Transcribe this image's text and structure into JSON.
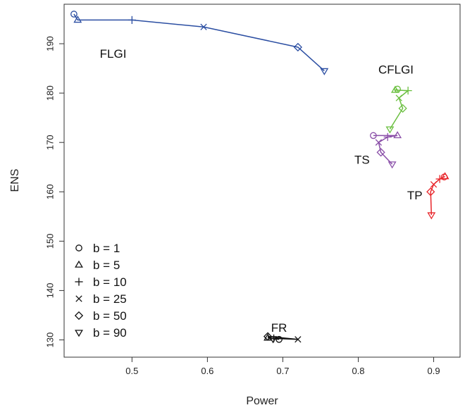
{
  "chart_data": {
    "type": "line",
    "xlabel": "Power",
    "ylabel": "ENS",
    "xlim": [
      0.41,
      0.935
    ],
    "ylim": [
      126.5,
      198
    ],
    "xticks": [
      0.5,
      0.6,
      0.7,
      0.8,
      0.9
    ],
    "xtick_labels": [
      "0.5",
      "0.6",
      "0.7",
      "0.8",
      "0.9"
    ],
    "yticks": [
      130,
      140,
      150,
      160,
      170,
      180,
      190
    ],
    "ytick_labels": [
      "130",
      "140",
      "150",
      "160",
      "170",
      "180",
      "190"
    ],
    "grid": false,
    "legend_position": "bottom-left",
    "legend": [
      {
        "marker": "circle",
        "label": "b = 1"
      },
      {
        "marker": "triangle-up",
        "label": "b = 5"
      },
      {
        "marker": "plus",
        "label": "b = 10"
      },
      {
        "marker": "cross",
        "label": "b = 25"
      },
      {
        "marker": "diamond",
        "label": "b = 50"
      },
      {
        "marker": "triangle-down",
        "label": "b = 90"
      }
    ],
    "markers_by_b": [
      "circle",
      "triangle-up",
      "plus",
      "cross",
      "diamond",
      "triangle-down"
    ],
    "series": [
      {
        "name": "FLGI",
        "color": "#2b4ea2",
        "label_anchor": [
          0.475,
          188.0
        ],
        "points": [
          {
            "b": 1,
            "x": 0.423,
            "y": 196.0
          },
          {
            "b": 5,
            "x": 0.428,
            "y": 194.8
          },
          {
            "b": 10,
            "x": 0.5,
            "y": 194.8
          },
          {
            "b": 25,
            "x": 0.595,
            "y": 193.4
          },
          {
            "b": 50,
            "x": 0.72,
            "y": 189.3
          },
          {
            "b": 90,
            "x": 0.755,
            "y": 184.5
          }
        ]
      },
      {
        "name": "CFLGI",
        "color": "#6abf3f",
        "label_anchor": [
          0.85,
          184.8
        ],
        "points": [
          {
            "b": 1,
            "x": 0.852,
            "y": 180.8
          },
          {
            "b": 5,
            "x": 0.849,
            "y": 180.6
          },
          {
            "b": 10,
            "x": 0.866,
            "y": 180.5
          },
          {
            "b": 25,
            "x": 0.854,
            "y": 179.0
          },
          {
            "b": 50,
            "x": 0.859,
            "y": 176.9
          },
          {
            "b": 90,
            "x": 0.842,
            "y": 172.7
          }
        ]
      },
      {
        "name": "TS",
        "color": "#8a4fa8",
        "label_anchor": [
          0.805,
          166.5
        ],
        "points": [
          {
            "b": 1,
            "x": 0.82,
            "y": 171.4
          },
          {
            "b": 5,
            "x": 0.852,
            "y": 171.4
          },
          {
            "b": 10,
            "x": 0.839,
            "y": 171.1
          },
          {
            "b": 25,
            "x": 0.827,
            "y": 170.0
          },
          {
            "b": 50,
            "x": 0.83,
            "y": 168.0
          },
          {
            "b": 90,
            "x": 0.845,
            "y": 165.6
          }
        ]
      },
      {
        "name": "TP",
        "color": "#e8262b",
        "label_anchor": [
          0.875,
          159.3
        ],
        "points": [
          {
            "b": 1,
            "x": 0.914,
            "y": 163.0
          },
          {
            "b": 5,
            "x": 0.915,
            "y": 163.1
          },
          {
            "b": 10,
            "x": 0.908,
            "y": 162.6
          },
          {
            "b": 25,
            "x": 0.9,
            "y": 161.5
          },
          {
            "b": 50,
            "x": 0.896,
            "y": 160.0
          },
          {
            "b": 90,
            "x": 0.897,
            "y": 155.3
          }
        ]
      },
      {
        "name": "FR",
        "color": "#111111",
        "label_anchor": [
          0.695,
          132.5
        ],
        "points": [
          {
            "b": 1,
            "x": 0.695,
            "y": 130.1
          },
          {
            "b": 5,
            "x": 0.68,
            "y": 130.4
          },
          {
            "b": 10,
            "x": 0.688,
            "y": 130.3
          },
          {
            "b": 25,
            "x": 0.72,
            "y": 130.1
          },
          {
            "b": 50,
            "x": 0.68,
            "y": 130.7
          },
          {
            "b": 90,
            "x": 0.687,
            "y": 130.2
          }
        ]
      }
    ]
  }
}
